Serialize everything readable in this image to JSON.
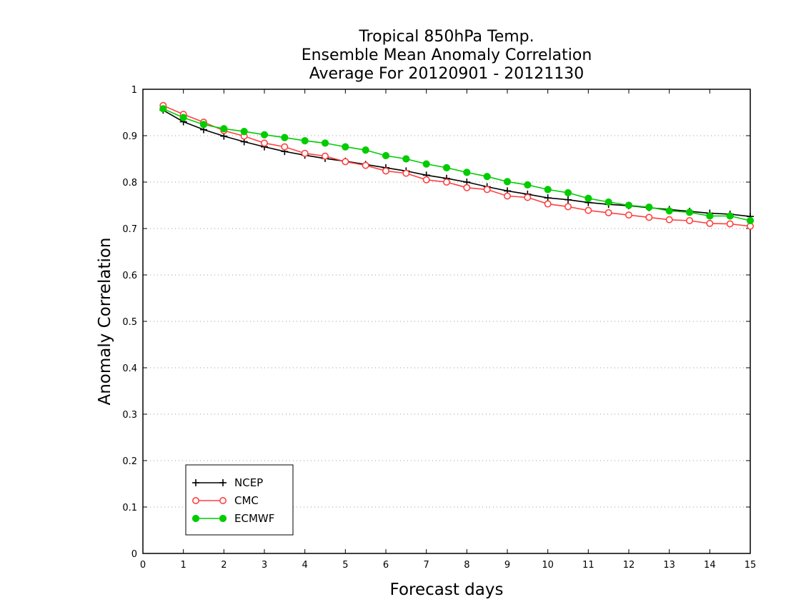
{
  "chart_data": {
    "type": "line",
    "title_lines": [
      "Tropical 850hPa Temp.",
      "Ensemble Mean Anomaly Correlation",
      "Average For 20120901 - 20121130"
    ],
    "xlabel": "Forecast days",
    "ylabel": "Anomaly Correlation",
    "xlim": [
      0,
      15
    ],
    "ylim": [
      0,
      1
    ],
    "x_ticks": [
      "0",
      "1",
      "2",
      "3",
      "4",
      "5",
      "6",
      "7",
      "8",
      "9",
      "10",
      "11",
      "12",
      "13",
      "14",
      "15"
    ],
    "y_ticks": [
      "0",
      "0.1",
      "0.2",
      "0.3",
      "0.4",
      "0.5",
      "0.6",
      "0.7",
      "0.8",
      "0.9",
      "1"
    ],
    "grid": "horizontal dotted",
    "legend_position": "bottom-left",
    "x": [
      0.5,
      1,
      1.5,
      2,
      2.5,
      3,
      3.5,
      4,
      4.5,
      5,
      5.5,
      6,
      6.5,
      7,
      7.5,
      8,
      8.5,
      9,
      9.5,
      10,
      10.5,
      11,
      11.5,
      12,
      12.5,
      13,
      13.5,
      14,
      14.5,
      15
    ],
    "series": [
      {
        "name": "NCEP",
        "color": "#000000",
        "marker": "plus",
        "values": [
          0.955,
          0.93,
          0.913,
          0.899,
          0.887,
          0.876,
          0.866,
          0.858,
          0.851,
          0.845,
          0.838,
          0.831,
          0.824,
          0.815,
          0.808,
          0.8,
          0.79,
          0.781,
          0.774,
          0.766,
          0.762,
          0.756,
          0.752,
          0.749,
          0.745,
          0.741,
          0.737,
          0.733,
          0.731,
          0.726
        ]
      },
      {
        "name": "CMC",
        "color": "#ff4040",
        "marker": "open-circle",
        "values": [
          0.965,
          0.946,
          0.929,
          0.911,
          0.899,
          0.884,
          0.876,
          0.862,
          0.856,
          0.844,
          0.836,
          0.824,
          0.819,
          0.805,
          0.8,
          0.788,
          0.784,
          0.77,
          0.767,
          0.753,
          0.747,
          0.739,
          0.734,
          0.729,
          0.724,
          0.719,
          0.717,
          0.711,
          0.71,
          0.705
        ]
      },
      {
        "name": "ECMWF",
        "color": "#00cc00",
        "marker": "filled-circle",
        "values": [
          0.958,
          0.939,
          0.924,
          0.915,
          0.909,
          0.902,
          0.896,
          0.889,
          0.884,
          0.876,
          0.869,
          0.857,
          0.85,
          0.839,
          0.831,
          0.821,
          0.812,
          0.801,
          0.794,
          0.784,
          0.777,
          0.765,
          0.757,
          0.75,
          0.746,
          0.738,
          0.735,
          0.727,
          0.727,
          0.717
        ]
      }
    ]
  }
}
